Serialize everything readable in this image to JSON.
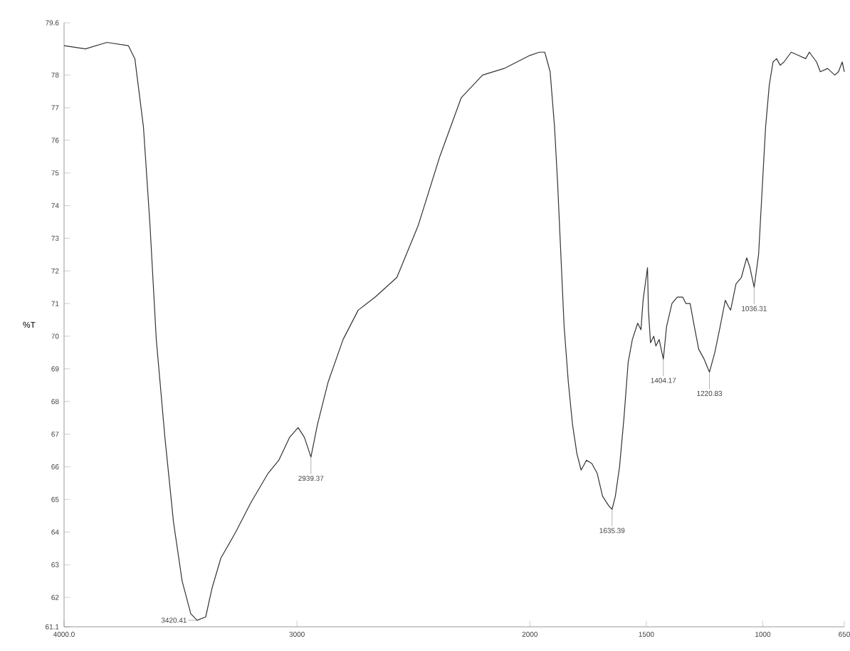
{
  "chart_data": {
    "type": "line",
    "ylabel": "%T",
    "x": [
      4000,
      3908,
      3816,
      3724,
      3696,
      3659,
      3631,
      3604,
      3567,
      3530,
      3493,
      3456,
      3429,
      3392,
      3364,
      3327,
      3263,
      3198,
      3124,
      3078,
      3032,
      2995,
      2968,
      2940,
      2912,
      2866,
      2802,
      2737,
      2664,
      2571,
      2479,
      2387,
      2295,
      2203,
      2111,
      2000,
      1959,
      1936,
      1913,
      1894,
      1881,
      1867,
      1853,
      1835,
      1817,
      1798,
      1780,
      1757,
      1734,
      1711,
      1688,
      1661,
      1647,
      1633,
      1615,
      1596,
      1578,
      1560,
      1537,
      1523,
      1514,
      1495,
      1491,
      1482,
      1468,
      1459,
      1445,
      1427,
      1413,
      1390,
      1367,
      1344,
      1330,
      1312,
      1294,
      1275,
      1252,
      1229,
      1206,
      1183,
      1161,
      1147,
      1138,
      1115,
      1092,
      1069,
      1055,
      1037,
      1018,
      1005,
      988,
      972,
      956,
      941,
      925,
      909,
      878,
      847,
      816,
      800,
      769,
      753,
      722,
      691,
      675,
      659,
      650
    ],
    "series": [
      {
        "color": "#333333",
        "values": [
          78.9,
          78.8,
          79.0,
          78.9,
          78.5,
          76.4,
          73.4,
          69.9,
          66.9,
          64.3,
          62.5,
          61.5,
          61.3,
          61.4,
          62.3,
          63.2,
          64.0,
          64.9,
          65.8,
          66.2,
          66.9,
          67.2,
          66.9,
          66.3,
          67.3,
          68.6,
          69.9,
          70.8,
          71.2,
          71.8,
          73.4,
          75.5,
          77.3,
          78.0,
          78.2,
          78.6,
          78.7,
          78.7,
          78.1,
          76.4,
          74.7,
          72.5,
          70.3,
          68.6,
          67.3,
          66.4,
          65.9,
          66.2,
          66.1,
          65.8,
          65.1,
          64.8,
          64.7,
          65.1,
          66.0,
          67.5,
          69.2,
          69.9,
          70.4,
          70.2,
          71.1,
          72.1,
          70.8,
          69.8,
          70.0,
          69.7,
          69.9,
          69.3,
          70.3,
          71.0,
          71.2,
          71.2,
          71.0,
          71.0,
          70.3,
          69.6,
          69.3,
          68.9,
          69.5,
          70.3,
          71.1,
          70.9,
          70.8,
          71.6,
          71.8,
          72.4,
          72.1,
          71.5,
          72.5,
          74.2,
          76.4,
          77.7,
          78.4,
          78.5,
          78.3,
          78.4,
          78.7,
          78.6,
          78.5,
          78.7,
          78.4,
          78.1,
          78.2,
          78.0,
          78.1,
          78.4,
          78.1
        ]
      }
    ],
    "xlim": [
      4000,
      650
    ],
    "xticks": [
      {
        "value": 4000,
        "label": "4000.0"
      },
      3000,
      2000,
      1500,
      1000,
      650
    ],
    "ylim": [
      61.1,
      79.6
    ],
    "yticks": [
      {
        "value": 61.1,
        "label": "61.1"
      },
      62,
      63,
      64,
      65,
      66,
      67,
      68,
      69,
      70,
      71,
      72,
      73,
      74,
      75,
      76,
      77,
      78,
      {
        "value": 79.6,
        "label": "79.6"
      }
    ],
    "grid": false,
    "marker": "none",
    "line_style": "solid",
    "annotations": [
      {
        "text": "3420.41",
        "x": 3429,
        "y": 61.3
      },
      {
        "text": "2939.37",
        "x": 2940,
        "y": 66.3
      },
      {
        "text": "1635.39",
        "x": 1647,
        "y": 64.7
      },
      {
        "text": "1404.17",
        "x": 1427,
        "y": 69.3
      },
      {
        "text": "1220.83",
        "x": 1229,
        "y": 68.9
      },
      {
        "text": "1036.31",
        "x": 1037,
        "y": 71.5
      }
    ]
  }
}
